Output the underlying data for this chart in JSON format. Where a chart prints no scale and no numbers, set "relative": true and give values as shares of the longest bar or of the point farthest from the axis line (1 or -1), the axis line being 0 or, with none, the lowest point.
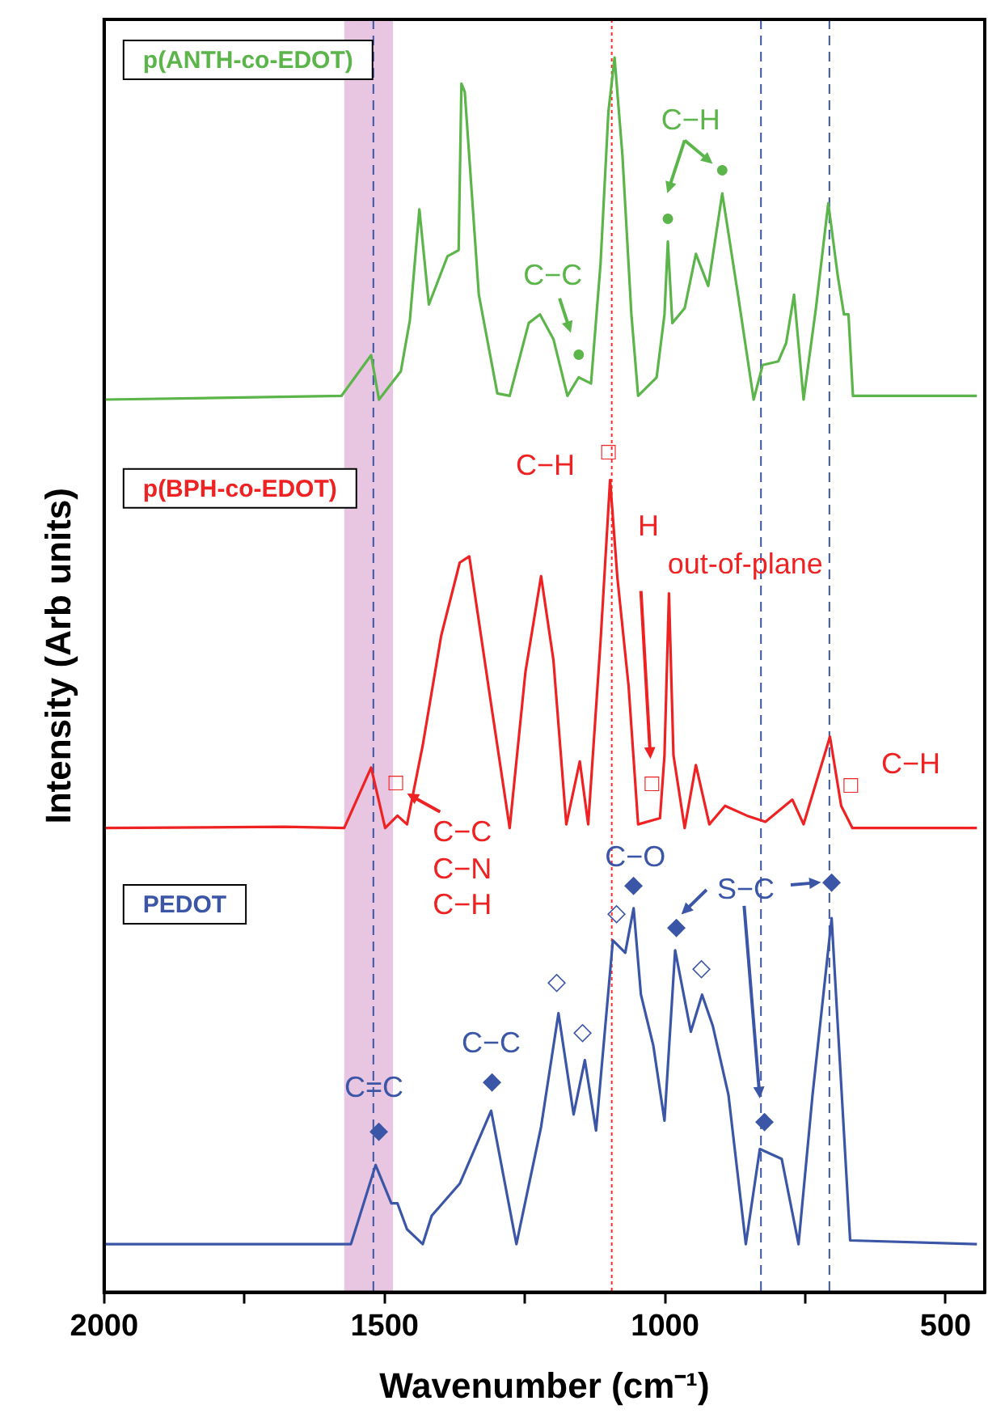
{
  "chart_data": {
    "type": "line",
    "relative": true,
    "xlabel": "Wavenumber (cm⁻¹)",
    "ylabel": "Intensity (Arb units)",
    "xlim": [
      2000,
      430
    ],
    "xticks": [
      2000,
      {
        "value": 1750,
        "label": null
      },
      1500,
      {
        "value": 1250,
        "label": null
      },
      1000,
      {
        "value": 750,
        "label": null
      },
      500
    ],
    "tick_labels": "x",
    "marker": "none",
    "line_style": "solid",
    "series": [
      {
        "name": "p(ANTH-co-EDOT)",
        "color": "#5cb54a",
        "x": [
          2000,
          1577,
          1524,
          1510,
          1471,
          1455,
          1438,
          1421,
          1388,
          1368,
          1363,
          1357,
          1332,
          1299,
          1277,
          1243,
          1223,
          1199,
          1174,
          1154,
          1132,
          1115,
          1101,
          1090,
          1076,
          1060,
          1048,
          1015,
          1001,
          995,
          987,
          965,
          945,
          923,
          898,
          870,
          842,
          826,
          798,
          784,
          770,
          753,
          731,
          709,
          692,
          681,
          673,
          665,
          444
        ],
        "values": [
          0.723,
          0.726,
          0.759,
          0.723,
          0.746,
          0.787,
          0.877,
          0.8,
          0.839,
          0.844,
          0.979,
          0.972,
          0.808,
          0.728,
          0.726,
          0.785,
          0.792,
          0.772,
          0.726,
          0.741,
          0.736,
          0.833,
          0.956,
          1.0,
          0.921,
          0.792,
          0.726,
          0.741,
          0.792,
          0.851,
          0.785,
          0.797,
          0.841,
          0.815,
          0.89,
          0.808,
          0.723,
          0.751,
          0.754,
          0.769,
          0.808,
          0.723,
          0.797,
          0.882,
          0.823,
          0.792,
          0.792,
          0.726,
          0.726
        ]
      },
      {
        "name": "p(BPH-co-EDOT)",
        "color": "#ee2222",
        "x": [
          2000,
          1677,
          1572,
          1524,
          1499,
          1477,
          1460,
          1432,
          1399,
          1366,
          1349,
          1310,
          1277,
          1249,
          1221,
          1199,
          1176,
          1152,
          1137,
          1115,
          1098,
          1085,
          1065,
          1048,
          1009,
          1001,
          993,
          985,
          965,
          945,
          921,
          893,
          854,
          821,
          773,
          753,
          706,
          686,
          666,
          444
        ],
        "values": [
          0.376,
          0.377,
          0.376,
          0.425,
          0.376,
          0.386,
          0.379,
          0.443,
          0.532,
          0.591,
          0.596,
          0.476,
          0.376,
          0.502,
          0.58,
          0.512,
          0.379,
          0.43,
          0.379,
          0.527,
          0.658,
          0.579,
          0.491,
          0.379,
          0.384,
          0.435,
          0.566,
          0.435,
          0.376,
          0.427,
          0.379,
          0.394,
          0.386,
          0.381,
          0.399,
          0.379,
          0.45,
          0.394,
          0.376,
          0.376
        ]
      },
      {
        "name": "PEDOT",
        "color": "#3b56a6",
        "x": [
          2000,
          1588,
          1560,
          1516,
          1488,
          1477,
          1460,
          1432,
          1416,
          1366,
          1310,
          1265,
          1221,
          1190,
          1163,
          1143,
          1123,
          1093,
          1071,
          1056,
          1043,
          1021,
          1001,
          982,
          954,
          934,
          915,
          887,
          856,
          831,
          792,
          762,
          737,
          703,
          670,
          444
        ],
        "values": [
          0.039,
          0.039,
          0.039,
          0.103,
          0.072,
          0.072,
          0.051,
          0.039,
          0.062,
          0.088,
          0.147,
          0.039,
          0.134,
          0.226,
          0.144,
          0.188,
          0.131,
          0.285,
          0.275,
          0.311,
          0.241,
          0.2,
          0.139,
          0.277,
          0.211,
          0.241,
          0.216,
          0.16,
          0.039,
          0.116,
          0.108,
          0.039,
          0.16,
          0.303,
          0.042,
          0.039
        ]
      }
    ],
    "annotations": [
      {
        "text": "C−C",
        "x": 1154,
        "y": 0.741
      },
      {
        "text": "●",
        "x": 1154,
        "y": 0.741
      },
      "C−H",
      {
        "text": "●",
        "x": 995,
        "y": 0.851
      },
      {
        "text": "●",
        "x": 898,
        "y": 0.89
      },
      {
        "text": "C−H",
        "x": 1098,
        "y": 0.658
      },
      {
        "text": "□",
        "x": 1098,
        "y": 0.658
      },
      "H",
      "out-of-plane",
      {
        "text": "□",
        "x": 1009,
        "y": 0.384
      },
      {
        "text": "□",
        "x": 1477,
        "y": 0.386
      },
      {
        "text": "C−C",
        "x": 1477,
        "y": 0.386
      },
      {
        "text": "C−N",
        "x": 1477,
        "y": 0.386
      },
      {
        "text": "C−H",
        "x": 1477,
        "y": 0.386
      },
      {
        "text": "□",
        "x": 686,
        "y": 0.394
      },
      {
        "text": "C−H",
        "x": 686,
        "y": 0.394
      },
      {
        "text": "C−O",
        "x": 1056,
        "y": 0.311
      },
      {
        "text": "◆",
        "x": 1056,
        "y": 0.311
      },
      {
        "text": "◇",
        "x": 1071,
        "y": 0.275
      },
      {
        "text": "◇",
        "x": 1190,
        "y": 0.226
      },
      {
        "text": "◇",
        "x": 1143,
        "y": 0.188
      },
      {
        "text": "◇",
        "x": 934,
        "y": 0.241
      },
      {
        "text": "◆",
        "x": 982,
        "y": 0.277
      },
      {
        "text": "S−C",
        "x": 703,
        "y": 0.303
      },
      {
        "text": "◆",
        "x": 703,
        "y": 0.303
      },
      {
        "text": "◆",
        "x": 831,
        "y": 0.116
      },
      {
        "text": "C−C",
        "x": 1310,
        "y": 0.147
      },
      {
        "text": "◆",
        "x": 1310,
        "y": 0.147
      },
      {
        "text": "C=C",
        "x": 1516,
        "y": 0.103
      },
      {
        "text": "◆",
        "x": 1516,
        "y": 0.103
      }
    ],
    "ref_lines": [
      {
        "axis": "x",
        "value": 1520,
        "color": "#3b56a6",
        "line_style": "dashed"
      },
      {
        "axis": "x",
        "value": 1095,
        "color": "#ff2a2a",
        "line_style": "dotted"
      },
      {
        "axis": "x",
        "value": 829,
        "color": "#3b56a6",
        "line_style": "dashed"
      },
      {
        "axis": "x",
        "value": 707,
        "color": "#3b56a6",
        "line_style": "dashed"
      }
    ],
    "bands": [
      {
        "axis": "x",
        "from": 1572,
        "to": 1485,
        "color": "#e8c6e2"
      }
    ]
  }
}
